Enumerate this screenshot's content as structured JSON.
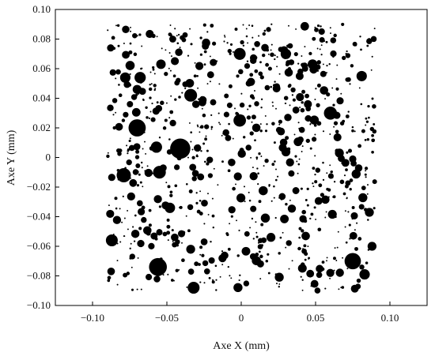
{
  "chart_data": {
    "type": "scatter",
    "title": "",
    "xlabel": "Axe X (mm)",
    "ylabel": "Axe Y (mm)",
    "xlim": [
      -0.125,
      0.125
    ],
    "ylim": [
      -0.1,
      0.1
    ],
    "xticks": [
      {
        "value": -0.1,
        "label": "−0.10"
      },
      {
        "value": -0.05,
        "label": "−0.05"
      },
      {
        "value": 0,
        "label": "0"
      },
      {
        "value": 0.05,
        "label": "0.05"
      },
      {
        "value": 0.1,
        "label": "0.10"
      }
    ],
    "yticks": [
      {
        "value": 0.1,
        "label": "0.10"
      },
      {
        "value": 0.08,
        "label": "0.08"
      },
      {
        "value": 0.06,
        "label": "0.06"
      },
      {
        "value": 0.04,
        "label": "0.04"
      },
      {
        "value": 0.02,
        "label": "0.02"
      },
      {
        "value": 0,
        "label": "0"
      },
      {
        "value": -0.02,
        "label": "−0.02"
      },
      {
        "value": -0.04,
        "label": "−0.04"
      },
      {
        "value": -0.06,
        "label": "−0.06"
      },
      {
        "value": -0.08,
        "label": "−0.08"
      },
      {
        "value": -0.1,
        "label": "−0.10"
      }
    ],
    "grid": false,
    "marker_color": "#000000",
    "point_field": {
      "x_range": [
        -0.09,
        0.09
      ],
      "y_range": [
        -0.09,
        0.09
      ],
      "count": 950
    },
    "series": [
      {
        "values": [
          {
            "x": -0.041,
            "y": 0.006,
            "r": 0.0068
          },
          {
            "x": -0.07,
            "y": 0.02,
            "r": 0.0058
          },
          {
            "x": -0.056,
            "y": -0.074,
            "r": 0.006
          },
          {
            "x": 0.075,
            "y": -0.07,
            "r": 0.0055
          },
          {
            "x": -0.079,
            "y": -0.012,
            "r": 0.0048
          },
          {
            "x": -0.055,
            "y": -0.01,
            "r": 0.0043
          },
          {
            "x": 0.06,
            "y": 0.03,
            "r": 0.0044
          },
          {
            "x": -0.034,
            "y": 0.042,
            "r": 0.0043
          },
          {
            "x": -0.087,
            "y": -0.056,
            "r": 0.004
          },
          {
            "x": -0.032,
            "y": -0.088,
            "r": 0.004
          },
          {
            "x": -0.001,
            "y": 0.025,
            "r": 0.0042
          },
          {
            "x": -0.001,
            "y": 0.07,
            "r": 0.004
          },
          {
            "x": -0.078,
            "y": 0.054,
            "r": 0.0035
          },
          {
            "x": -0.068,
            "y": 0.054,
            "r": 0.0038
          },
          {
            "x": 0.083,
            "y": -0.079,
            "r": 0.0035
          },
          {
            "x": 0.081,
            "y": 0.055,
            "r": 0.0035
          },
          {
            "x": 0.048,
            "y": 0.063,
            "r": 0.0033
          },
          {
            "x": 0.03,
            "y": 0.07,
            "r": 0.0035
          },
          {
            "x": -0.048,
            "y": -0.034,
            "r": 0.0035
          },
          {
            "x": -0.057,
            "y": 0.007,
            "r": 0.0038
          },
          {
            "x": -0.054,
            "y": 0.063,
            "r": 0.0032
          },
          {
            "x": -0.034,
            "y": -0.062,
            "r": 0.003
          },
          {
            "x": 0.02,
            "y": -0.054,
            "r": 0.003
          },
          {
            "x": 0.066,
            "y": 0.003,
            "r": 0.003
          },
          {
            "x": 0.088,
            "y": -0.06,
            "r": 0.003
          }
        ]
      }
    ]
  }
}
